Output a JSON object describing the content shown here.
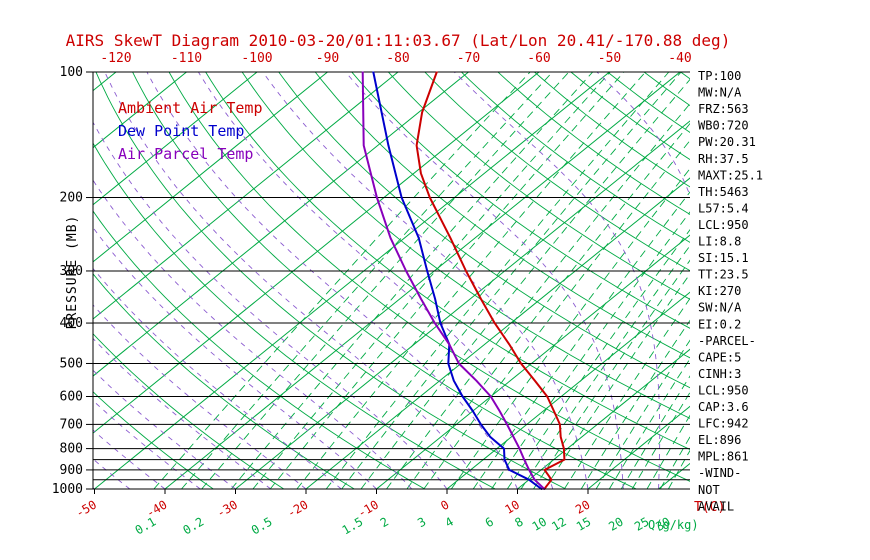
{
  "chart_data": {
    "type": "line",
    "title": "AIRS SkewT Diagram 2010-03-20/01:11:03.67 (Lat/Lon 20.41/-170.88 deg)",
    "ylabel": "PRESSURE (MB)",
    "xlabel_temp": "T(C)",
    "xlabel_mixing": "Q(g/kg)",
    "y_scale": "log",
    "pressure_range_mb": [
      100,
      1000
    ],
    "pressure_tick_labels": [
      100,
      200,
      300,
      400,
      500,
      600,
      700,
      800,
      900,
      1000
    ],
    "pressure_grid_lines": [
      100,
      200,
      300,
      400,
      500,
      600,
      700,
      800,
      850,
      900,
      950,
      1000
    ],
    "top_temp_ticks_c": [
      -120,
      -110,
      -100,
      -90,
      -80,
      -70,
      -60,
      -50,
      -40
    ],
    "bottom_temp_ticks_c": [
      -50,
      -40,
      -30,
      -20,
      -10,
      0,
      10,
      20
    ],
    "mixing_ratio_labels_gkg": [
      0.1,
      0.2,
      0.5,
      1.5,
      2,
      3,
      4,
      6,
      8,
      10,
      12,
      15,
      20,
      25,
      30
    ],
    "mixing_ratio_lines_gkg": [
      0.1,
      0.15,
      0.2,
      0.3,
      0.4,
      0.5,
      0.7,
      1,
      1.2,
      1.5,
      2,
      2.5,
      3,
      4,
      5,
      6,
      7,
      8,
      9,
      10,
      12,
      14,
      16,
      18,
      20,
      22,
      25,
      28,
      30
    ],
    "isotherms_c": {
      "min": -160,
      "max": 40,
      "step": 10
    },
    "dry_adiabats_theta_k": {
      "min": 240,
      "max": 460,
      "step": 10
    },
    "moist_adiabats_start_c": {
      "min": -55,
      "max": 40,
      "step": 5
    },
    "colors": {
      "temperature": "#cc0000",
      "dewpoint": "#0000cc",
      "parcel": "#8800bb",
      "isotherm": "#00aa44",
      "mixing": "#00aa44",
      "moist_adiabat": "#8c5cd0",
      "axis": "#000000"
    },
    "series": [
      {
        "name": "Ambient Air Temp",
        "color": "#cc0000",
        "points_p_t": [
          [
            1000,
            13.8
          ],
          [
            950,
            13.2
          ],
          [
            900,
            10.5
          ],
          [
            850,
            11.5
          ],
          [
            800,
            9.5
          ],
          [
            750,
            7.0
          ],
          [
            700,
            4.7
          ],
          [
            650,
            1.5
          ],
          [
            600,
            -2.0
          ],
          [
            550,
            -6.5
          ],
          [
            500,
            -11.5
          ],
          [
            450,
            -16.5
          ],
          [
            400,
            -22.3
          ],
          [
            350,
            -28.5
          ],
          [
            300,
            -35.5
          ],
          [
            250,
            -43.5
          ],
          [
            200,
            -53.5
          ],
          [
            175,
            -59.0
          ],
          [
            150,
            -64.5
          ],
          [
            125,
            -69.5
          ],
          [
            100,
            -74.5
          ]
        ]
      },
      {
        "name": "Dew Point Temp",
        "color": "#0000cc",
        "points_p_t": [
          [
            1000,
            13.4
          ],
          [
            950,
            10.0
          ],
          [
            900,
            5.5
          ],
          [
            850,
            3.0
          ],
          [
            800,
            1.0
          ],
          [
            750,
            -3.0
          ],
          [
            700,
            -6.5
          ],
          [
            650,
            -10.0
          ],
          [
            600,
            -14.0
          ],
          [
            550,
            -18.0
          ],
          [
            500,
            -21.8
          ],
          [
            450,
            -25.0
          ],
          [
            400,
            -30.0
          ],
          [
            350,
            -35.0
          ],
          [
            300,
            -41.0
          ],
          [
            250,
            -48.0
          ],
          [
            200,
            -57.5
          ],
          [
            150,
            -68.5
          ],
          [
            100,
            -83.5
          ]
        ]
      },
      {
        "name": "Air Parcel Temp",
        "color": "#8800bb",
        "points_p_t": [
          [
            1000,
            13.8
          ],
          [
            950,
            10.8
          ],
          [
            900,
            8.3
          ],
          [
            850,
            5.8
          ],
          [
            800,
            3.2
          ],
          [
            750,
            0.3
          ],
          [
            700,
            -2.8
          ],
          [
            650,
            -6.2
          ],
          [
            600,
            -10.0
          ],
          [
            550,
            -14.8
          ],
          [
            500,
            -20.3
          ],
          [
            450,
            -25.0
          ],
          [
            400,
            -30.8
          ],
          [
            350,
            -37.0
          ],
          [
            300,
            -44.0
          ],
          [
            250,
            -52.0
          ],
          [
            200,
            -61.0
          ],
          [
            150,
            -72.0
          ],
          [
            100,
            -85.0
          ]
        ]
      }
    ]
  },
  "side_panel": {
    "lines": [
      "TP:100",
      "MW:N/A",
      "FRZ:563",
      "WB0:720",
      "PW:20.31",
      "RH:37.5",
      "MAXT:25.1",
      "TH:5463",
      "L57:5.4",
      "LCL:950",
      "LI:8.8",
      "SI:15.1",
      "TT:23.5",
      "KI:270",
      "SW:N/A",
      "EI:0.2",
      "-PARCEL-",
      "CAPE:5",
      "CINH:3",
      "LCL:950",
      "CAP:3.6",
      "LFC:942",
      "EL:896",
      "MPL:861",
      "-WIND-",
      "NOT",
      "AVAIL"
    ]
  }
}
